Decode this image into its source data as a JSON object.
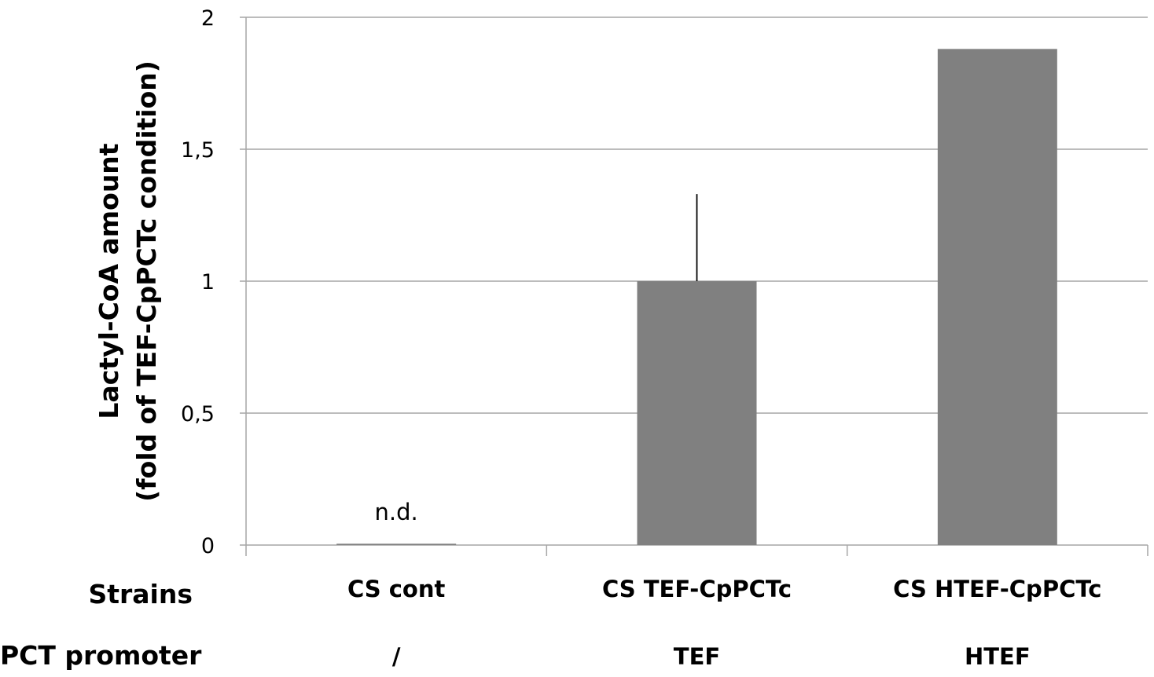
{
  "chart_data": {
    "type": "bar",
    "title": "",
    "ylabel": [
      "Lactyl-CoA amount",
      "(fold of TEF-CpPCTc condition)"
    ],
    "ylim": [
      0,
      2
    ],
    "yticks": [
      0,
      0.5,
      1,
      1.5,
      2
    ],
    "ytick_labels": [
      "0",
      "0,5",
      "1",
      "1,5",
      "2"
    ],
    "grid": true,
    "categories": [
      "CS cont",
      "CS TEF-CpPCTc",
      "CS HTEF-CpPCTc"
    ],
    "values": [
      0.005,
      1.0,
      1.88
    ],
    "error_plus": [
      0,
      0.33,
      0
    ],
    "bar_color": "#808080",
    "annotations": [
      {
        "category": "CS cont",
        "text": "n.d."
      }
    ],
    "rows": [
      {
        "header": "Strains",
        "values": [
          "CS cont",
          "CS TEF-CpPCTc",
          "CS HTEF-CpPCTc"
        ]
      },
      {
        "header": "PCT promoter",
        "values": [
          "/",
          "TEF",
          "HTEF"
        ]
      }
    ]
  }
}
